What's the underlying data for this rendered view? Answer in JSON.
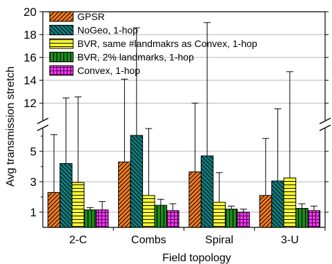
{
  "chart_data": {
    "type": "bar",
    "title": "",
    "xlabel": "Field topology",
    "ylabel": "Avg transmission stretch",
    "categories": [
      "2-C",
      "Combs",
      "Spiral",
      "3-U"
    ],
    "axis_break": {
      "lower": [
        0,
        6.5
      ],
      "upper": [
        10.5,
        20
      ]
    },
    "yticks": [
      1,
      3,
      5,
      12,
      14,
      16,
      18,
      20
    ],
    "legend_position": "top-left",
    "series": [
      {
        "name": "GPSR",
        "color": "#F47C20",
        "pattern": "diag-right",
        "values": [
          2.3,
          4.3,
          3.65,
          2.1
        ],
        "error_high": [
          6.1,
          14.1,
          12.0,
          5.85
        ]
      },
      {
        "name": "NoGeo, 1-hop",
        "color": "#0F7F80",
        "pattern": "diag-left",
        "values": [
          4.2,
          6.05,
          4.7,
          3.05
        ],
        "error_high": [
          12.45,
          18.6,
          19.05,
          11.5
        ]
      },
      {
        "name": "BVR, same #landmakrs as Convex, 1-hop",
        "color": "#FFFF33",
        "pattern": "horizontal",
        "values": [
          2.95,
          2.1,
          1.65,
          3.25
        ],
        "error_high": [
          12.55,
          6.5,
          3.6,
          14.75
        ]
      },
      {
        "name": "BVR, 2% landmarks, 1-hop",
        "color": "#1A8C1A",
        "pattern": "vertical",
        "values": [
          1.15,
          1.45,
          1.2,
          1.25
        ],
        "error_high": [
          1.3,
          1.85,
          1.4,
          1.55
        ]
      },
      {
        "name": "Convex, 1-hop",
        "color": "#FF33FF",
        "pattern": "grid",
        "values": [
          1.15,
          1.1,
          1.0,
          1.1
        ],
        "error_high": [
          1.7,
          1.55,
          1.2,
          1.4
        ]
      }
    ]
  }
}
